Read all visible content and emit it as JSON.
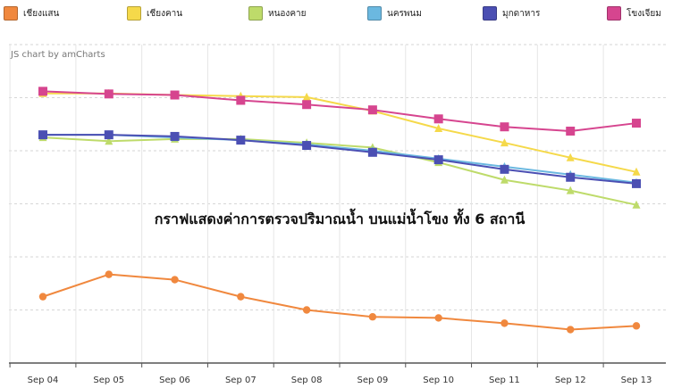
{
  "chart_data": {
    "type": "line",
    "title": "กราฟแสดงค่าการตรวจปริมาณน้ำ บนแม่น้ำโขง ทั้ง 6 สถานี",
    "watermark": "JS chart by amCharts",
    "categories": [
      "Sep 04",
      "Sep 05",
      "Sep 06",
      "Sep 07",
      "Sep 08",
      "Sep 09",
      "Sep 10",
      "Sep 11",
      "Sep 12",
      "Sep 13"
    ],
    "xlabel": "",
    "ylabel": "",
    "ylim": [
      0,
      6
    ],
    "grid": true,
    "legend_position": "top",
    "series": [
      {
        "name": "เชียงแสน",
        "color": "#F0883E",
        "marker": "circle",
        "values": [
          1.25,
          1.67,
          1.57,
          1.25,
          1.0,
          0.87,
          0.85,
          0.75,
          0.63,
          0.7
        ]
      },
      {
        "name": "เชียงคาน",
        "color": "#F5D94A",
        "marker": "triangle",
        "values": [
          5.08,
          5.08,
          5.05,
          5.03,
          5.01,
          4.75,
          4.42,
          4.15,
          3.87,
          3.6
        ]
      },
      {
        "name": "หนองคาย",
        "color": "#BEDB6A",
        "marker": "triangle",
        "values": [
          4.25,
          4.18,
          4.22,
          4.22,
          4.15,
          4.06,
          3.78,
          3.45,
          3.25,
          2.98
        ]
      },
      {
        "name": "นครพนม",
        "color": "#6BB8E0",
        "marker": "triangle",
        "values": [
          4.3,
          4.3,
          4.25,
          4.2,
          4.12,
          4.0,
          3.85,
          3.7,
          3.55,
          3.4
        ]
      },
      {
        "name": "มุกดาหาร",
        "color": "#4B4FB3",
        "marker": "square",
        "values": [
          4.3,
          4.3,
          4.27,
          4.2,
          4.1,
          3.97,
          3.83,
          3.65,
          3.5,
          3.38
        ]
      },
      {
        "name": "โขงเจียม",
        "color": "#D6458F",
        "marker": "square",
        "values": [
          5.12,
          5.07,
          5.05,
          4.95,
          4.87,
          4.77,
          4.6,
          4.45,
          4.37,
          4.52
        ]
      }
    ]
  }
}
